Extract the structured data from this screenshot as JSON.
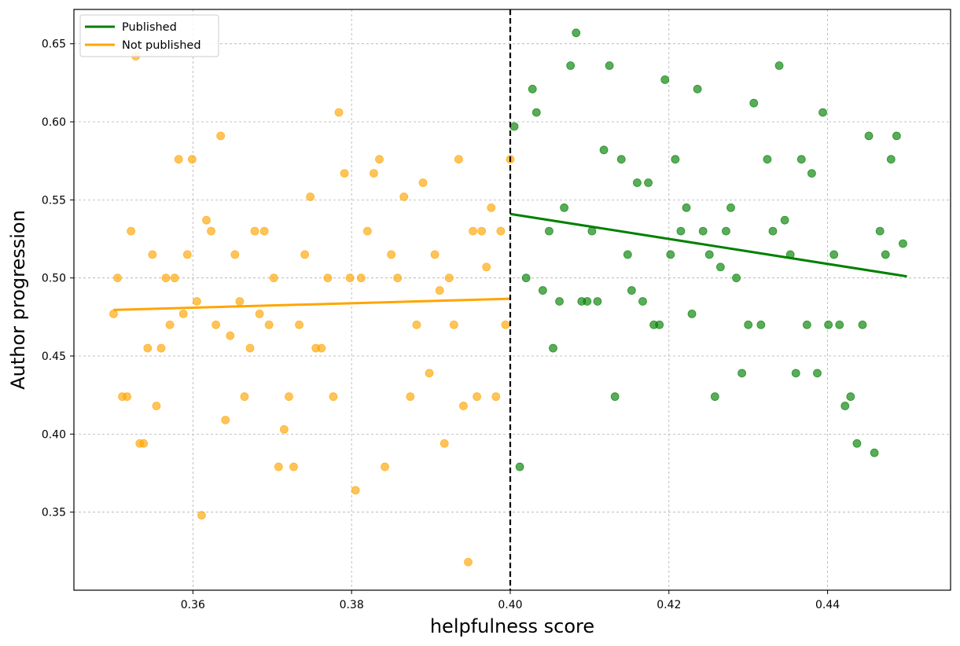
{
  "chart_data": {
    "type": "scatter",
    "title": "",
    "xlabel": "helpfulness score",
    "ylabel": "Author progression",
    "xlim": [
      0.345,
      0.4555
    ],
    "ylim": [
      0.3,
      0.672
    ],
    "xticks": [
      0.36,
      0.38,
      0.4,
      0.42,
      0.44
    ],
    "xtick_labels": [
      "0.36",
      "0.38",
      "0.40",
      "0.42",
      "0.44"
    ],
    "yticks": [
      0.35,
      0.4,
      0.45,
      0.5,
      0.55,
      0.6,
      0.65
    ],
    "ytick_labels": [
      "0.35",
      "0.40",
      "0.45",
      "0.50",
      "0.55",
      "0.60",
      "0.65"
    ],
    "grid": true,
    "legend_position": "top-left",
    "threshold": 0.4,
    "series": [
      {
        "name": "Published",
        "color": "#008000",
        "fit_line": [
          [
            0.4,
            0.541
          ],
          [
            0.45,
            0.501
          ]
        ],
        "points": [
          [
            0.4005,
            0.597
          ],
          [
            0.402,
            0.5
          ],
          [
            0.4028,
            0.621
          ],
          [
            0.4033,
            0.606
          ],
          [
            0.4041,
            0.492
          ],
          [
            0.4049,
            0.53
          ],
          [
            0.4054,
            0.455
          ],
          [
            0.4062,
            0.485
          ],
          [
            0.4068,
            0.545
          ],
          [
            0.4076,
            0.636
          ],
          [
            0.4083,
            0.657
          ],
          [
            0.409,
            0.485
          ],
          [
            0.4097,
            0.485
          ],
          [
            0.4103,
            0.53
          ],
          [
            0.411,
            0.485
          ],
          [
            0.4118,
            0.582
          ],
          [
            0.4125,
            0.636
          ],
          [
            0.4132,
            0.424
          ],
          [
            0.414,
            0.576
          ],
          [
            0.4148,
            0.515
          ],
          [
            0.4153,
            0.492
          ],
          [
            0.416,
            0.561
          ],
          [
            0.4167,
            0.485
          ],
          [
            0.4174,
            0.561
          ],
          [
            0.4181,
            0.47
          ],
          [
            0.4188,
            0.47
          ],
          [
            0.4195,
            0.627
          ],
          [
            0.4202,
            0.515
          ],
          [
            0.4208,
            0.576
          ],
          [
            0.4215,
            0.53
          ],
          [
            0.4222,
            0.545
          ],
          [
            0.4229,
            0.477
          ],
          [
            0.4236,
            0.621
          ],
          [
            0.4243,
            0.53
          ],
          [
            0.4251,
            0.515
          ],
          [
            0.4258,
            0.424
          ],
          [
            0.4265,
            0.507
          ],
          [
            0.4272,
            0.53
          ],
          [
            0.4278,
            0.545
          ],
          [
            0.4285,
            0.5
          ],
          [
            0.4292,
            0.439
          ],
          [
            0.43,
            0.47
          ],
          [
            0.4307,
            0.612
          ],
          [
            0.4316,
            0.47
          ],
          [
            0.4324,
            0.576
          ],
          [
            0.4331,
            0.53
          ],
          [
            0.4339,
            0.636
          ],
          [
            0.4346,
            0.537
          ],
          [
            0.4353,
            0.515
          ],
          [
            0.436,
            0.439
          ],
          [
            0.4367,
            0.576
          ],
          [
            0.4374,
            0.47
          ],
          [
            0.438,
            0.567
          ],
          [
            0.4387,
            0.439
          ],
          [
            0.4394,
            0.606
          ],
          [
            0.4401,
            0.47
          ],
          [
            0.4408,
            0.515
          ],
          [
            0.4415,
            0.47
          ],
          [
            0.4422,
            0.418
          ],
          [
            0.4429,
            0.424
          ],
          [
            0.4437,
            0.394
          ],
          [
            0.4444,
            0.47
          ],
          [
            0.4452,
            0.591
          ],
          [
            0.4459,
            0.388
          ],
          [
            0.4466,
            0.53
          ],
          [
            0.4473,
            0.515
          ],
          [
            0.448,
            0.576
          ],
          [
            0.4487,
            0.591
          ],
          [
            0.4495,
            0.522
          ],
          [
            0.4012,
            0.379
          ]
        ]
      },
      {
        "name": "Not published",
        "color": "#FFA500",
        "fit_line": [
          [
            0.35,
            0.4795
          ],
          [
            0.4,
            0.4867
          ]
        ],
        "points": [
          [
            0.35,
            0.477
          ],
          [
            0.3505,
            0.5
          ],
          [
            0.3511,
            0.424
          ],
          [
            0.3517,
            0.424
          ],
          [
            0.3522,
            0.53
          ],
          [
            0.3528,
            0.642
          ],
          [
            0.3533,
            0.394
          ],
          [
            0.3538,
            0.394
          ],
          [
            0.3543,
            0.455
          ],
          [
            0.3549,
            0.515
          ],
          [
            0.3554,
            0.418
          ],
          [
            0.356,
            0.455
          ],
          [
            0.3566,
            0.5
          ],
          [
            0.3571,
            0.47
          ],
          [
            0.3577,
            0.5
          ],
          [
            0.3582,
            0.576
          ],
          [
            0.3588,
            0.477
          ],
          [
            0.3593,
            0.515
          ],
          [
            0.3599,
            0.576
          ],
          [
            0.3605,
            0.485
          ],
          [
            0.3611,
            0.348
          ],
          [
            0.3617,
            0.537
          ],
          [
            0.3623,
            0.53
          ],
          [
            0.3629,
            0.47
          ],
          [
            0.3635,
            0.591
          ],
          [
            0.3641,
            0.409
          ],
          [
            0.3647,
            0.463
          ],
          [
            0.3653,
            0.515
          ],
          [
            0.3659,
            0.485
          ],
          [
            0.3665,
            0.424
          ],
          [
            0.3672,
            0.455
          ],
          [
            0.3678,
            0.53
          ],
          [
            0.3684,
            0.477
          ],
          [
            0.369,
            0.53
          ],
          [
            0.3696,
            0.47
          ],
          [
            0.3702,
            0.5
          ],
          [
            0.3708,
            0.379
          ],
          [
            0.3715,
            0.403
          ],
          [
            0.3721,
            0.424
          ],
          [
            0.3727,
            0.379
          ],
          [
            0.3734,
            0.47
          ],
          [
            0.3741,
            0.515
          ],
          [
            0.3748,
            0.552
          ],
          [
            0.3755,
            0.455
          ],
          [
            0.3762,
            0.455
          ],
          [
            0.377,
            0.5
          ],
          [
            0.3777,
            0.424
          ],
          [
            0.3784,
            0.606
          ],
          [
            0.3791,
            0.567
          ],
          [
            0.3798,
            0.5
          ],
          [
            0.3805,
            0.364
          ],
          [
            0.3812,
            0.5
          ],
          [
            0.382,
            0.53
          ],
          [
            0.3828,
            0.567
          ],
          [
            0.3835,
            0.576
          ],
          [
            0.3842,
            0.379
          ],
          [
            0.385,
            0.515
          ],
          [
            0.3858,
            0.5
          ],
          [
            0.3866,
            0.552
          ],
          [
            0.3874,
            0.424
          ],
          [
            0.3882,
            0.47
          ],
          [
            0.389,
            0.561
          ],
          [
            0.3898,
            0.439
          ],
          [
            0.3905,
            0.515
          ],
          [
            0.3911,
            0.492
          ],
          [
            0.3917,
            0.394
          ],
          [
            0.3923,
            0.5
          ],
          [
            0.3929,
            0.47
          ],
          [
            0.3935,
            0.576
          ],
          [
            0.3941,
            0.418
          ],
          [
            0.3947,
            0.318
          ],
          [
            0.3953,
            0.53
          ],
          [
            0.3958,
            0.424
          ],
          [
            0.3964,
            0.53
          ],
          [
            0.397,
            0.507
          ],
          [
            0.3976,
            0.545
          ],
          [
            0.3982,
            0.424
          ],
          [
            0.3988,
            0.53
          ],
          [
            0.3994,
            0.47
          ],
          [
            0.4,
            0.576
          ]
        ]
      }
    ]
  }
}
